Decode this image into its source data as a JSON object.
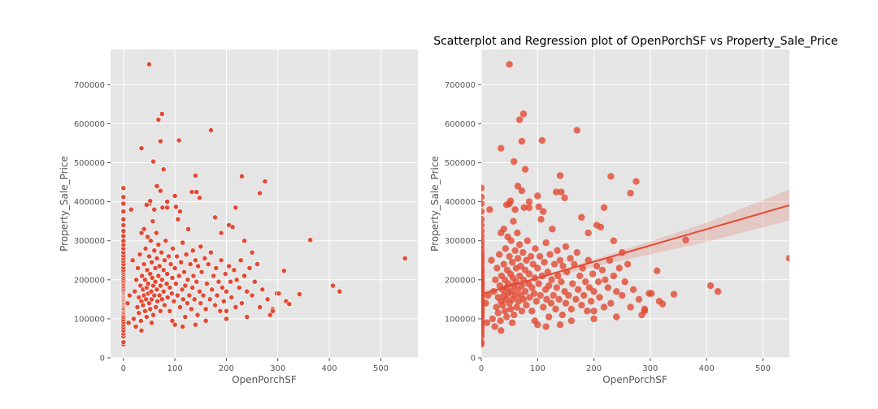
{
  "figure": {
    "title": "Scatterplot and Regression plot of OpenPorchSF vs Property_Sale_Price"
  },
  "colors": {
    "background": "#e5e5e5",
    "grid": "#ffffff",
    "point": "#e24a33",
    "band": "#e24a33",
    "tick": "#555555"
  },
  "chart_data": [
    {
      "type": "scatter",
      "title": "",
      "xlabel": "OpenPorchSF",
      "ylabel": "Property_Sale_Price",
      "xlim": [
        -25,
        572
      ],
      "ylim": [
        0,
        790000
      ],
      "xticks": [
        0,
        100,
        200,
        300,
        400,
        500
      ],
      "yticks": [
        0,
        100000,
        200000,
        300000,
        400000,
        500000,
        600000,
        700000
      ],
      "grid": true,
      "points": [
        [
          0,
          35000
        ],
        [
          0,
          40000
        ],
        [
          0,
          55000
        ],
        [
          0,
          62000
        ],
        [
          0,
          70000
        ],
        [
          0,
          78000
        ],
        [
          0,
          85000
        ],
        [
          0,
          92000
        ],
        [
          0,
          98000
        ],
        [
          0,
          105000
        ],
        [
          0,
          110000
        ],
        [
          0,
          115000
        ],
        [
          0,
          118000
        ],
        [
          0,
          122000
        ],
        [
          0,
          125000
        ],
        [
          0,
          128000
        ],
        [
          0,
          132000
        ],
        [
          0,
          135000
        ],
        [
          0,
          138000
        ],
        [
          0,
          140000
        ],
        [
          0,
          143000
        ],
        [
          0,
          145000
        ],
        [
          0,
          148000
        ],
        [
          0,
          150000
        ],
        [
          0,
          153000
        ],
        [
          0,
          155000
        ],
        [
          0,
          158000
        ],
        [
          0,
          160000
        ],
        [
          0,
          163000
        ],
        [
          0,
          165000
        ],
        [
          0,
          168000
        ],
        [
          0,
          170000
        ],
        [
          0,
          173000
        ],
        [
          0,
          176000
        ],
        [
          0,
          180000
        ],
        [
          0,
          184000
        ],
        [
          0,
          188000
        ],
        [
          0,
          192000
        ],
        [
          0,
          196000
        ],
        [
          0,
          200000
        ],
        [
          0,
          205000
        ],
        [
          0,
          210000
        ],
        [
          0,
          215000
        ],
        [
          0,
          220000
        ],
        [
          0,
          225000
        ],
        [
          0,
          232000
        ],
        [
          0,
          240000
        ],
        [
          0,
          248000
        ],
        [
          0,
          255000
        ],
        [
          0,
          262000
        ],
        [
          0,
          270000
        ],
        [
          0,
          280000
        ],
        [
          0,
          290000
        ],
        [
          0,
          300000
        ],
        [
          0,
          312000
        ],
        [
          0,
          325000
        ],
        [
          0,
          340000
        ],
        [
          0,
          355000
        ],
        [
          0,
          375000
        ],
        [
          0,
          395000
        ],
        [
          0,
          412000
        ],
        [
          0,
          435000
        ],
        [
          8,
          140000
        ],
        [
          12,
          160000
        ],
        [
          15,
          380000
        ],
        [
          18,
          250000
        ],
        [
          20,
          100000
        ],
        [
          22,
          170000
        ],
        [
          24,
          80000
        ],
        [
          25,
          200000
        ],
        [
          27,
          130000
        ],
        [
          28,
          230000
        ],
        [
          30,
          155000
        ],
        [
          30,
          115000
        ],
        [
          32,
          265000
        ],
        [
          33,
          185000
        ],
        [
          34,
          95000
        ],
        [
          35,
          320000
        ],
        [
          35,
          145000
        ],
        [
          36,
          210000
        ],
        [
          38,
          175000
        ],
        [
          38,
          135000
        ],
        [
          40,
          330000
        ],
        [
          40,
          240000
        ],
        [
          40,
          160000
        ],
        [
          42,
          200000
        ],
        [
          42,
          120000
        ],
        [
          43,
          280000
        ],
        [
          44,
          150000
        ],
        [
          45,
          180000
        ],
        [
          45,
          105000
        ],
        [
          46,
          225000
        ],
        [
          47,
          310000
        ],
        [
          48,
          165000
        ],
        [
          48,
          190000
        ],
        [
          50,
          395000
        ],
        [
          50,
          260000
        ],
        [
          50,
          140000
        ],
        [
          52,
          215000
        ],
        [
          52,
          125000
        ],
        [
          53,
          300000
        ],
        [
          54,
          170000
        ],
        [
          55,
          245000
        ],
        [
          55,
          150000
        ],
        [
          56,
          205000
        ],
        [
          57,
          350000
        ],
        [
          58,
          185000
        ],
        [
          58,
          110000
        ],
        [
          60,
          275000
        ],
        [
          60,
          160000
        ],
        [
          62,
          230000
        ],
        [
          62,
          195000
        ],
        [
          63,
          130000
        ],
        [
          64,
          320000
        ],
        [
          65,
          255000
        ],
        [
          65,
          175000
        ],
        [
          66,
          145000
        ],
        [
          68,
          210000
        ],
        [
          68,
          290000
        ],
        [
          70,
          160000
        ],
        [
          70,
          235000
        ],
        [
          72,
          185000
        ],
        [
          72,
          120000
        ],
        [
          74,
          270000
        ],
        [
          75,
          200000
        ],
        [
          75,
          150000
        ],
        [
          76,
          385000
        ],
        [
          78,
          225000
        ],
        [
          78,
          170000
        ],
        [
          80,
          250000
        ],
        [
          80,
          135000
        ],
        [
          82,
          300000
        ],
        [
          84,
          190000
        ],
        [
          85,
          215000
        ],
        [
          86,
          155000
        ],
        [
          88,
          260000
        ],
        [
          90,
          180000
        ],
        [
          90,
          120000
        ],
        [
          92,
          240000
        ],
        [
          94,
          165000
        ],
        [
          95,
          205000
        ],
        [
          96,
          280000
        ],
        [
          98,
          145000
        ],
        [
          100,
          230000
        ],
        [
          100,
          85000
        ],
        [
          102,
          190000
        ],
        [
          104,
          260000
        ],
        [
          105,
          160000
        ],
        [
          106,
          355000
        ],
        [
          108,
          210000
        ],
        [
          110,
          130000
        ],
        [
          112,
          245000
        ],
        [
          114,
          175000
        ],
        [
          115,
          295000
        ],
        [
          116,
          150000
        ],
        [
          118,
          220000
        ],
        [
          120,
          185000
        ],
        [
          120,
          105000
        ],
        [
          122,
          265000
        ],
        [
          124,
          140000
        ],
        [
          125,
          200000
        ],
        [
          126,
          330000
        ],
        [
          128,
          160000
        ],
        [
          130,
          240000
        ],
        [
          132,
          125000
        ],
        [
          134,
          180000
        ],
        [
          135,
          275000
        ],
        [
          136,
          210000
        ],
        [
          138,
          150000
        ],
        [
          140,
          250000
        ],
        [
          142,
          195000
        ],
        [
          144,
          110000
        ],
        [
          145,
          235000
        ],
        [
          148,
          170000
        ],
        [
          150,
          285000
        ],
        [
          150,
          140000
        ],
        [
          152,
          220000
        ],
        [
          155,
          160000
        ],
        [
          158,
          255000
        ],
        [
          160,
          125000
        ],
        [
          162,
          190000
        ],
        [
          165,
          240000
        ],
        [
          168,
          150000
        ],
        [
          170,
          270000
        ],
        [
          172,
          175000
        ],
        [
          175,
          210000
        ],
        [
          178,
          135000
        ],
        [
          180,
          230000
        ],
        [
          182,
          160000
        ],
        [
          185,
          195000
        ],
        [
          188,
          120000
        ],
        [
          190,
          250000
        ],
        [
          192,
          180000
        ],
        [
          195,
          145000
        ],
        [
          198,
          215000
        ],
        [
          200,
          170000
        ],
        [
          200,
          100000
        ],
        [
          205,
          235000
        ],
        [
          208,
          195000
        ],
        [
          210,
          155000
        ],
        [
          215,
          225000
        ],
        [
          218,
          130000
        ],
        [
          220,
          200000
        ],
        [
          225,
          180000
        ],
        [
          228,
          250000
        ],
        [
          230,
          140000
        ],
        [
          235,
          210000
        ],
        [
          240,
          170000
        ],
        [
          245,
          230000
        ],
        [
          250,
          160000
        ],
        [
          255,
          195000
        ],
        [
          260,
          240000
        ],
        [
          265,
          130000
        ],
        [
          270,
          175000
        ],
        [
          280,
          150000
        ],
        [
          285,
          110000
        ],
        [
          290,
          125000
        ],
        [
          298,
          165000
        ],
        [
          10,
          90000
        ],
        [
          35,
          70000
        ],
        [
          55,
          90000
        ],
        [
          95,
          95000
        ],
        [
          115,
          80000
        ],
        [
          140,
          85000
        ],
        [
          160,
          95000
        ],
        [
          200,
          120000
        ],
        [
          240,
          105000
        ],
        [
          290,
          120000
        ],
        [
          50,
          752000
        ],
        [
          75,
          625000
        ],
        [
          68,
          610000
        ],
        [
          170,
          583000
        ],
        [
          72,
          555000
        ],
        [
          108,
          557000
        ],
        [
          35,
          537000
        ],
        [
          58,
          503000
        ],
        [
          78,
          483000
        ],
        [
          140,
          467000
        ],
        [
          230,
          465000
        ],
        [
          275,
          452000
        ],
        [
          65,
          440000
        ],
        [
          72,
          428000
        ],
        [
          133,
          425000
        ],
        [
          142,
          425000
        ],
        [
          265,
          422000
        ],
        [
          100,
          415000
        ],
        [
          148,
          410000
        ],
        [
          85,
          400000
        ],
        [
          52,
          402000
        ],
        [
          45,
          392000
        ],
        [
          102,
          387000
        ],
        [
          85,
          385000
        ],
        [
          60,
          380000
        ],
        [
          110,
          375000
        ],
        [
          218,
          385000
        ],
        [
          205,
          340000
        ],
        [
          212,
          335000
        ],
        [
          178,
          360000
        ],
        [
          190,
          320000
        ],
        [
          235,
          300000
        ],
        [
          250,
          270000
        ],
        [
          312,
          223000
        ],
        [
          302,
          165000
        ],
        [
          316,
          145000
        ],
        [
          322,
          138000
        ],
        [
          342,
          163000
        ],
        [
          363,
          302000
        ],
        [
          407,
          185000
        ],
        [
          420,
          170000
        ],
        [
          547,
          255000
        ]
      ]
    },
    {
      "type": "scatter",
      "title": "Scatterplot and Regression plot of OpenPorchSF vs Property_Sale_Price",
      "xlabel": "OpenPorchSF",
      "ylabel": "Property_Sale_Price",
      "xlim": [
        0,
        547
      ],
      "ylim": [
        0,
        790000
      ],
      "xticks": [
        0,
        100,
        200,
        300,
        400,
        500
      ],
      "yticks": [
        0,
        100000,
        200000,
        300000,
        400000,
        500000,
        600000,
        700000
      ],
      "grid": true,
      "points_from": "same as first chart",
      "regression": {
        "line": [
          [
            0,
            163000
          ],
          [
            547,
            391000
          ]
        ],
        "ci_upper": [
          [
            0,
            170000
          ],
          [
            100,
            207000
          ],
          [
            200,
            252000
          ],
          [
            300,
            299000
          ],
          [
            400,
            346000
          ],
          [
            547,
            431000
          ]
        ],
        "ci_lower": [
          [
            0,
            156000
          ],
          [
            100,
            197000
          ],
          [
            200,
            234000
          ],
          [
            300,
            265000
          ],
          [
            400,
            297000
          ],
          [
            547,
            352000
          ]
        ]
      }
    }
  ]
}
